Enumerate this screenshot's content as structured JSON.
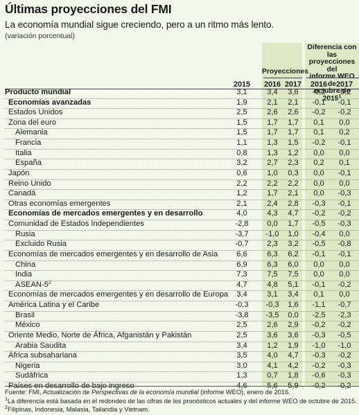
{
  "title": "Últimas proyecciones del FMI",
  "subtitle": "La economía mundial sigue creciendo, pero a un ritmo más lento.",
  "unit": "(variación porcentual)",
  "header": {
    "proj_group": "Proyecciones",
    "diff_group_line1": "Diferencia con las",
    "diff_group_line2": "proyecciones del",
    "diff_group_line3": "informe WEO de",
    "diff_group_line4": "octubre de 2015",
    "diff_group_sup": "1",
    "years": [
      "2015",
      "2016",
      "2017",
      "2016",
      "2017"
    ]
  },
  "rows": [
    {
      "label": "Producto mundial",
      "bold": true,
      "indent": 0,
      "values": [
        "3,1",
        "3,4",
        "3,6",
        "-0,2",
        "-0,2"
      ]
    },
    {
      "label": "Economías avanzadas",
      "bold": true,
      "indent": 1,
      "values": [
        "1,9",
        "2,1",
        "2,1",
        "-0,1",
        "-0,1"
      ]
    },
    {
      "label": "Estados Unidos",
      "bold": false,
      "indent": 1,
      "values": [
        "2,5",
        "2,6",
        "2,6",
        "-0,2",
        "-0,2"
      ]
    },
    {
      "label": "Zona del euro",
      "bold": false,
      "indent": 1,
      "values": [
        "1,5",
        "1,7",
        "1,7",
        "0,1",
        "0,0"
      ]
    },
    {
      "label": "Alemania",
      "bold": false,
      "indent": 2,
      "values": [
        "1,5",
        "1,7",
        "1,7",
        "0,1",
        "0,2"
      ]
    },
    {
      "label": "Francia",
      "bold": false,
      "indent": 2,
      "values": [
        "1,1",
        "1,3",
        "1,5",
        "-0,2",
        "-0,1"
      ]
    },
    {
      "label": "Italia",
      "bold": false,
      "indent": 2,
      "values": [
        "0,8",
        "1,3",
        "1,2",
        "0,0",
        "0,0"
      ]
    },
    {
      "label": "España",
      "bold": false,
      "indent": 2,
      "values": [
        "3,2",
        "2,7",
        "2,3",
        "0,2",
        "0,1"
      ]
    },
    {
      "label": "Japón",
      "bold": false,
      "indent": 1,
      "values": [
        "0,6",
        "1,0",
        "0,3",
        "0,0",
        "-0,1"
      ]
    },
    {
      "label": "Reino Unido",
      "bold": false,
      "indent": 1,
      "values": [
        "2,2",
        "2,2",
        "2,2",
        "0,0",
        "0,0"
      ]
    },
    {
      "label": "Canadá",
      "bold": false,
      "indent": 1,
      "values": [
        "1,2",
        "1,7",
        "2,1",
        "0,0",
        "-0,3"
      ]
    },
    {
      "label": "Otras economías emergentes",
      "bold": false,
      "indent": 1,
      "values": [
        "2,1",
        "2,4",
        "2,8",
        "-0,3",
        "-0,1"
      ]
    },
    {
      "label": "Economías de mercados emergentes y en desarrollo",
      "bold": true,
      "indent": 1,
      "values": [
        "4,0",
        "4,3",
        "4,7",
        "-0,2",
        "-0,2"
      ]
    },
    {
      "label": "Comunidad de Estados Independientes",
      "bold": false,
      "indent": 1,
      "values": [
        "-2,8",
        "0,0",
        "1,7",
        "-0,5",
        "-0,3"
      ]
    },
    {
      "label": "Rusia",
      "bold": false,
      "indent": 2,
      "values": [
        "-3,7",
        "-1,0",
        "1,0",
        "-0,4",
        "0,0"
      ]
    },
    {
      "label": "Excluido Rusia",
      "bold": false,
      "indent": 2,
      "values": [
        "-0,7",
        "2,3",
        "3,2",
        "-0,5",
        "-0,8"
      ]
    },
    {
      "label": "Economías de mercados emergentes y en desarrollo de Asia",
      "bold": false,
      "indent": 1,
      "values": [
        "6,6",
        "6,3",
        "6,2",
        "-0,1",
        "-0,1"
      ]
    },
    {
      "label": "China",
      "bold": false,
      "indent": 2,
      "values": [
        "6,9",
        "6,3",
        "6,0",
        "0,0",
        "0,0"
      ]
    },
    {
      "label": "India",
      "bold": false,
      "indent": 2,
      "values": [
        "7,3",
        "7,5",
        "7,5",
        "0,0",
        "0,0"
      ]
    },
    {
      "label": "ASEAN-5",
      "sup": "2",
      "bold": false,
      "indent": 2,
      "values": [
        "4,7",
        "4,8",
        "5,1",
        "-0,1",
        "-0,2"
      ]
    },
    {
      "label": "Economías de mercados emergentes y en desarrollo de Europa",
      "bold": false,
      "indent": 1,
      "values": [
        "3,4",
        "3,1",
        "3,4",
        "0,1",
        "0,0"
      ]
    },
    {
      "label": "América Latina y el Caribe",
      "bold": false,
      "indent": 1,
      "values": [
        "-0,3",
        "-0,3",
        "1,6",
        "-1,1",
        "-0,7"
      ]
    },
    {
      "label": "Brasil",
      "bold": false,
      "indent": 2,
      "values": [
        "-3,8",
        "-3,5",
        "0,0",
        "-2,5",
        "-2,3"
      ]
    },
    {
      "label": "México",
      "bold": false,
      "indent": 2,
      "values": [
        "2,5",
        "2,6",
        "2,9",
        "-0,2",
        "-0,2"
      ]
    },
    {
      "label": "Oriente Medio, Norte de África, Afganistán y Pakistán",
      "bold": false,
      "indent": 1,
      "values": [
        "2,5",
        "3,6",
        "3,6",
        "-0,3",
        "-0,5"
      ]
    },
    {
      "label": "Arabia Saudita",
      "bold": false,
      "indent": 2,
      "values": [
        "3,4",
        "1,2",
        "1,9",
        "-1,0",
        "-1,0"
      ]
    },
    {
      "label": "África subsahariana",
      "bold": false,
      "indent": 1,
      "values": [
        "3,5",
        "4,0",
        "4,7",
        "-0,3",
        "-0,2"
      ]
    },
    {
      "label": "Nigeria",
      "bold": false,
      "indent": 2,
      "values": [
        "3,0",
        "4,1",
        "4,2",
        "-0,2",
        "-0,3"
      ]
    },
    {
      "label": "Sudáfrica",
      "bold": false,
      "indent": 2,
      "values": [
        "1,3",
        "0,7",
        "1,8",
        "-0,6",
        "-0,3"
      ]
    },
    {
      "label": "Países en desarrollo de bajo ingreso",
      "bold": false,
      "indent": 1,
      "values": [
        "4,6",
        "5,6",
        "5,9",
        "-0,2",
        "-0,2"
      ]
    }
  ],
  "footnotes": {
    "source_prefix": "Fuente: FMI, Actualización de ",
    "source_italic": "Perspectivas de la economía mundial",
    "source_suffix": " (informe WEO), enero de 2016.",
    "note1_sup": "1",
    "note1": "La diferencia está basada en el redondeo de las cifras de los pronósticos actuales y del informe WEO de octubre de 2015.",
    "note2_sup": "2",
    "note2": "Filipinas, Indonesia, Malasia, Tailandia y Vietnam."
  },
  "colors": {
    "background": "#f3f8ea",
    "band": "#dde9c6",
    "rule": "#8aa46a"
  }
}
